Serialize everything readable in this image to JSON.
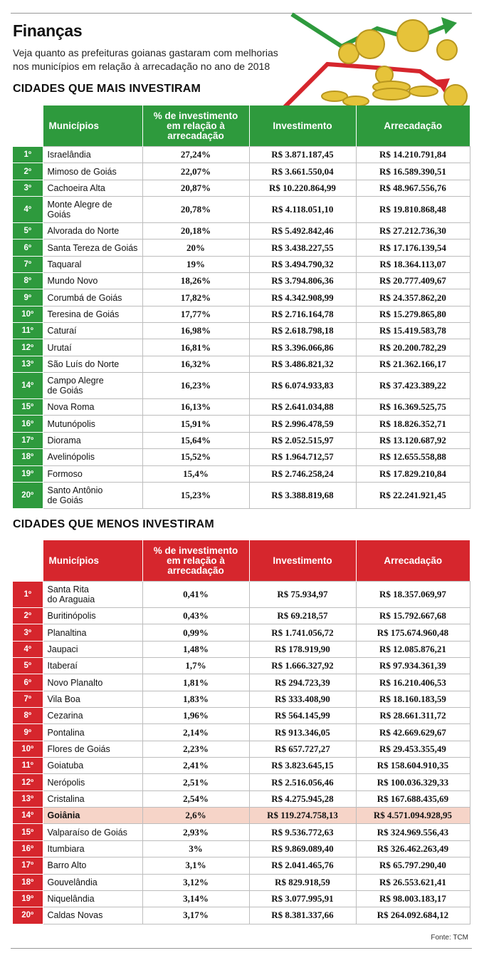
{
  "header": {
    "title": "Finanças",
    "subtitle": [
      "Veja quanto as prefeituras goianas gastaram com melhorias",
      "nos municípios em relação à arrecadação no ano de 2018"
    ]
  },
  "tables": [
    {
      "heading": "CIDADES QUE MAIS INVESTIRAM",
      "color": "#2e9a3d",
      "columns": [
        "Municípios",
        "% de investimento\nem relação à\narrecadação",
        "Investimento",
        "Arrecadação"
      ],
      "rows": [
        [
          "1º",
          "Israelândia",
          "27,24%",
          "R$ 3.871.187,45",
          "R$ 14.210.791,84"
        ],
        [
          "2º",
          "Mimoso de Goiás",
          "22,07%",
          "R$ 3.661.550,04",
          "R$ 16.589.390,51"
        ],
        [
          "3º",
          "Cachoeira Alta",
          "20,87%",
          "R$ 10.220.864,99",
          "R$ 48.967.556,76"
        ],
        [
          "4º",
          "Monte Alegre de\nGoiás",
          "20,78%",
          "R$ 4.118.051,10",
          "R$ 19.810.868,48"
        ],
        [
          "5º",
          "Alvorada do Norte",
          "20,18%",
          "R$ 5.492.842,46",
          "R$ 27.212.736,30"
        ],
        [
          "6º",
          "Santa Tereza de Goiás",
          "20%",
          "R$ 3.438.227,55",
          "R$ 17.176.139,54"
        ],
        [
          "7º",
          "Taquaral",
          "19%",
          "R$ 3.494.790,32",
          "R$ 18.364.113,07"
        ],
        [
          "8º",
          "Mundo Novo",
          "18,26%",
          "R$ 3.794.806,36",
          "R$ 20.777.409,67"
        ],
        [
          "9º",
          "Corumbá de Goiás",
          "17,82%",
          "R$ 4.342.908,99",
          "R$ 24.357.862,20"
        ],
        [
          "10º",
          "Teresina de Goiás",
          "17,77%",
          "R$ 2.716.164,78",
          "R$ 15.279.865,80"
        ],
        [
          "11º",
          "Caturaí",
          "16,98%",
          "R$ 2.618.798,18",
          "R$ 15.419.583,78"
        ],
        [
          "12º",
          "Urutaí",
          "16,81%",
          "R$ 3.396.066,86",
          "R$ 20.200.782,29"
        ],
        [
          "13º",
          "São Luís do Norte",
          "16,32%",
          "R$ 3.486.821,32",
          "R$ 21.362.166,17"
        ],
        [
          "14º",
          "Campo Alegre\nde Goiás",
          "16,23%",
          "R$ 6.074.933,83",
          "R$ 37.423.389,22"
        ],
        [
          "15º",
          "Nova Roma",
          "16,13%",
          "R$ 2.641.034,88",
          "R$ 16.369.525,75"
        ],
        [
          "16º",
          "Mutunópolis",
          "15,91%",
          "R$ 2.996.478,59",
          "R$ 18.826.352,71"
        ],
        [
          "17º",
          "Diorama",
          "15,64%",
          "R$ 2.052.515,97",
          "R$ 13.120.687,92"
        ],
        [
          "18º",
          "Avelinópolis",
          "15,52%",
          "R$ 1.964.712,57",
          "R$ 12.655.558,88"
        ],
        [
          "19º",
          "Formoso",
          "15,4%",
          "R$ 2.746.258,24",
          "R$ 17.829.210,84"
        ],
        [
          "20º",
          "Santo Antônio\nde Goiás",
          "15,23%",
          "R$ 3.388.819,68",
          "R$ 22.241.921,45"
        ]
      ]
    },
    {
      "heading": "CIDADES QUE MENOS INVESTIRAM",
      "color": "#d6262d",
      "highlight_rank": "14º",
      "highlight_color": "#f6d4c8",
      "columns": [
        "Municípios",
        "% de investimento\nem relação à\narrecadação",
        "Investimento",
        "Arrecadação"
      ],
      "rows": [
        [
          "1º",
          "Santa Rita\ndo Araguaia",
          "0,41%",
          "R$ 75.934,97",
          "R$ 18.357.069,97"
        ],
        [
          "2º",
          "Buritinópolis",
          "0,43%",
          "R$ 69.218,57",
          "R$ 15.792.667,68"
        ],
        [
          "3º",
          "Planaltina",
          "0,99%",
          "R$ 1.741.056,72",
          "R$ 175.674.960,48"
        ],
        [
          "4º",
          "Jaupaci",
          "1,48%",
          "R$ 178.919,90",
          "R$ 12.085.876,21"
        ],
        [
          "5º",
          "Itaberaí",
          "1,7%",
          "R$ 1.666.327,92",
          "R$ 97.934.361,39"
        ],
        [
          "6º",
          "Novo Planalto",
          "1,81%",
          "R$ 294.723,39",
          "R$ 16.210.406,53"
        ],
        [
          "7º",
          "Vila Boa",
          "1,83%",
          "R$ 333.408,90",
          "R$ 18.160.183,59"
        ],
        [
          "8º",
          "Cezarina",
          "1,96%",
          "R$ 564.145,99",
          "R$ 28.661.311,72"
        ],
        [
          "9º",
          "Pontalina",
          "2,14%",
          "R$ 913.346,05",
          "R$ 42.669.629,67"
        ],
        [
          "10º",
          "Flores de Goiás",
          "2,23%",
          "R$ 657.727,27",
          "R$ 29.453.355,49"
        ],
        [
          "11º",
          "Goiatuba",
          "2,41%",
          "R$ 3.823.645,15",
          "R$ 158.604.910,35"
        ],
        [
          "12º",
          "Nerópolis",
          "2,51%",
          "R$ 2.516.056,46",
          "R$ 100.036.329,33"
        ],
        [
          "13º",
          "Cristalina",
          "2,54%",
          "R$ 4.275.945,28",
          "R$ 167.688.435,69"
        ],
        [
          "14º",
          "Goiânia",
          "2,6%",
          "R$ 119.274.758,13",
          "R$ 4.571.094.928,95"
        ],
        [
          "15º",
          "Valparaíso de Goiás",
          "2,93%",
          "R$ 9.536.772,63",
          "R$ 324.969.556,43"
        ],
        [
          "16º",
          "Itumbiara",
          "3%",
          "R$ 9.869.089,40",
          "R$ 326.462.263,49"
        ],
        [
          "17º",
          "Barro Alto",
          "3,1%",
          "R$ 2.041.465,76",
          "R$ 65.797.290,40"
        ],
        [
          "18º",
          "Gouvelândia",
          "3,12%",
          "R$ 829.918,59",
          "R$ 26.553.621,41"
        ],
        [
          "19º",
          "Niquelândia",
          "3,14%",
          "R$ 3.077.995,91",
          "R$ 98.003.183,17"
        ],
        [
          "20º",
          "Caldas Novas",
          "3,17%",
          "R$ 8.381.337,66",
          "R$ 264.092.684,12"
        ]
      ]
    }
  ],
  "source": "Fonte: TCM"
}
